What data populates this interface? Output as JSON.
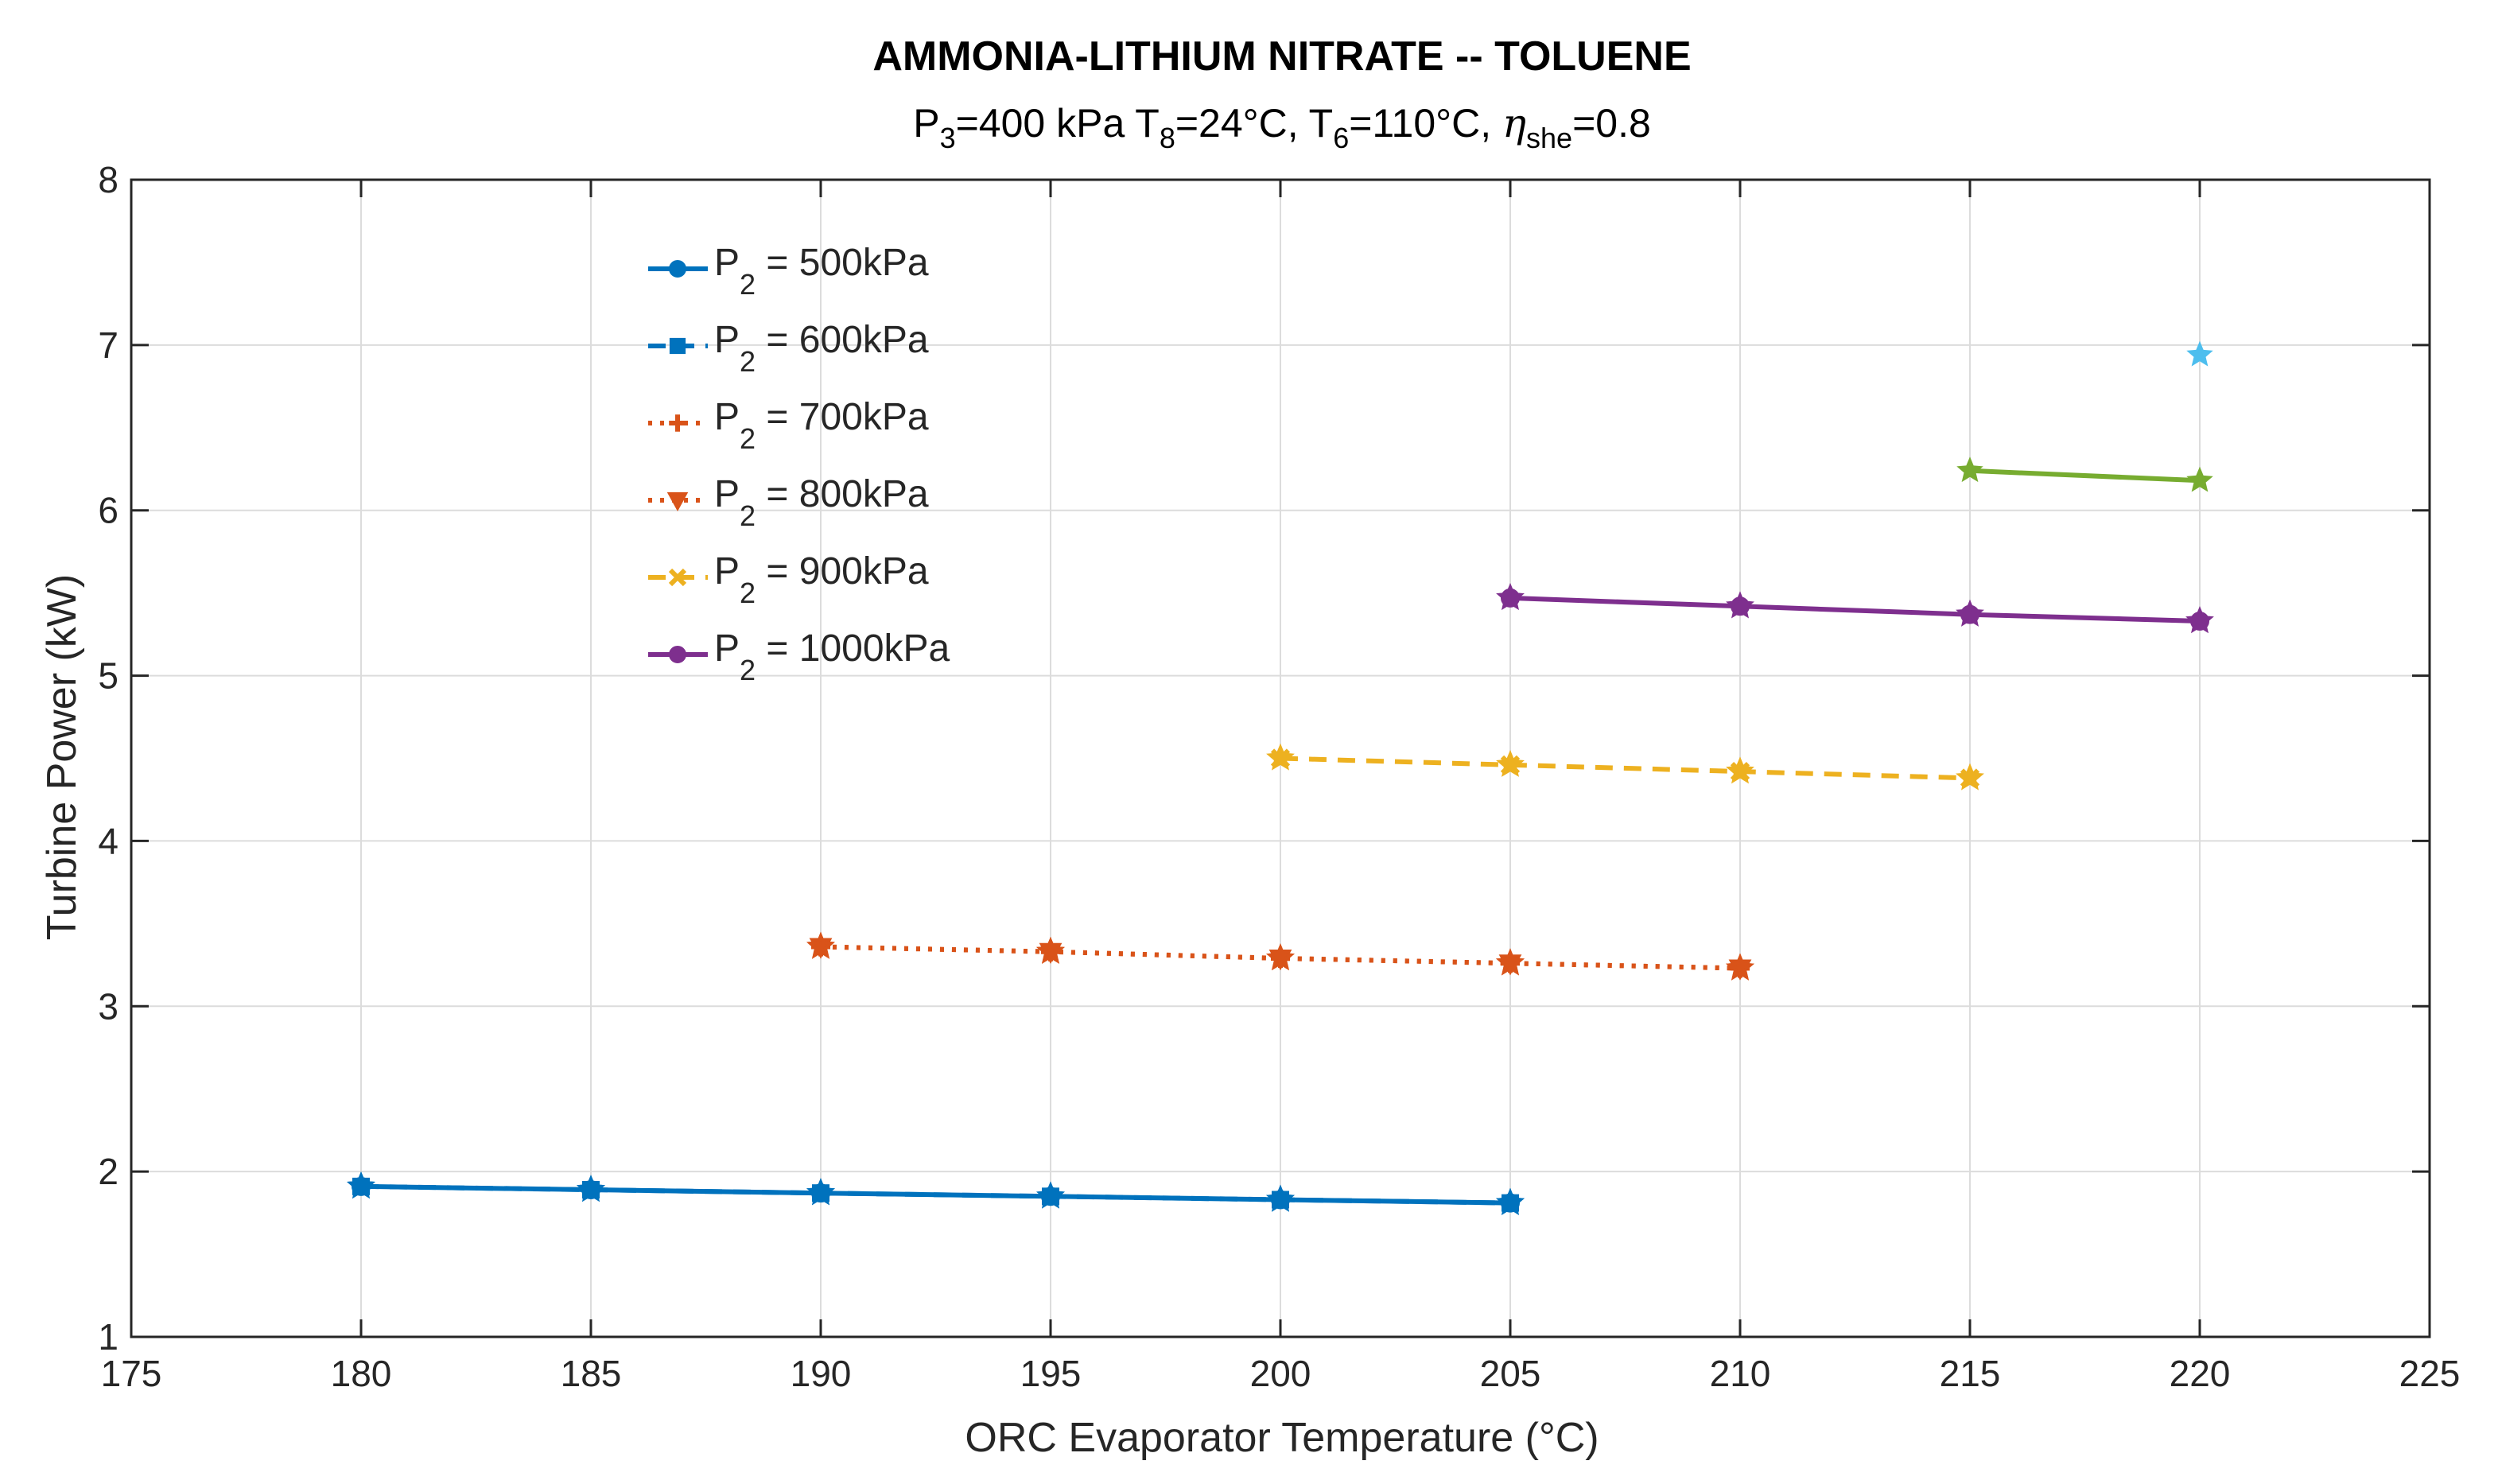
{
  "chart_data": {
    "type": "line",
    "title": "AMMONIA-LITHIUM NITRATE -- TOLUENE",
    "subtitle": {
      "p3_label": "P",
      "p3_sub": "3",
      "p3_value": "=400 kPa",
      "t8_label": "T",
      "t8_sub": "8",
      "t8_value": "=24°C,",
      "t6_label": "T",
      "t6_sub": "6",
      "t6_value": "=110°C,",
      "eta_label": "η",
      "eta_sub": "she",
      "eta_value": "=0.8"
    },
    "xlabel": "ORC Evaporator Temperature (°C)",
    "ylabel": "Turbine Power (kW)",
    "xlim": [
      175,
      225
    ],
    "ylim": [
      1,
      8
    ],
    "xticks": [
      175,
      180,
      185,
      190,
      195,
      200,
      205,
      210,
      215,
      220,
      225
    ],
    "yticks": [
      1,
      2,
      3,
      4,
      5,
      6,
      7,
      8
    ],
    "grid": true,
    "legend_position": "top-left",
    "series": [
      {
        "name_prefix": "P",
        "name_sub": "2",
        "name_suffix": " = 500kPa",
        "color": "#0072BD",
        "line": "solid",
        "marker": "circle",
        "x": [
          180,
          185,
          190,
          195,
          200,
          205
        ],
        "y": [
          1.91,
          1.89,
          1.87,
          1.85,
          1.83,
          1.81
        ]
      },
      {
        "name_prefix": "P",
        "name_sub": "2",
        "name_suffix": " = 600kPa",
        "color": "#0072BD",
        "line": "dashed",
        "marker": "square",
        "x": [
          180,
          185,
          190,
          195,
          200,
          205
        ],
        "y": [
          1.91,
          1.89,
          1.87,
          1.85,
          1.83,
          1.81
        ]
      },
      {
        "name_prefix": "P",
        "name_sub": "2",
        "name_suffix": " = 700kPa",
        "color": "#D95319",
        "line": "dotted",
        "marker": "plus",
        "x": [
          190,
          195,
          200,
          205,
          210
        ],
        "y": [
          3.36,
          3.33,
          3.29,
          3.26,
          3.23
        ]
      },
      {
        "name_prefix": "P",
        "name_sub": "2",
        "name_suffix": " = 800kPa",
        "color": "#D95319",
        "line": "dotted",
        "marker": "triangle-down",
        "x": [
          190,
          195,
          200,
          205,
          210
        ],
        "y": [
          3.36,
          3.33,
          3.29,
          3.26,
          3.23
        ]
      },
      {
        "name_prefix": "P",
        "name_sub": "2",
        "name_suffix": " = 900kPa",
        "color": "#EDB120",
        "line": "dashed",
        "marker": "x",
        "x": [
          200,
          205,
          210,
          215
        ],
        "y": [
          4.5,
          4.46,
          4.42,
          4.38
        ]
      },
      {
        "name_prefix": "P",
        "name_sub": "2",
        "name_suffix": " = 1000kPa",
        "color": "#7E2F8E",
        "line": "solid",
        "marker": "circle",
        "x": [
          205,
          210,
          215,
          220
        ],
        "y": [
          5.47,
          5.42,
          5.37,
          5.33
        ]
      },
      {
        "color": "#77AC30",
        "line": "solid",
        "marker": "star",
        "x": [
          215,
          220
        ],
        "y": [
          6.24,
          6.18
        ]
      },
      {
        "color": "#4DBEEE",
        "line": "solid",
        "marker": "star",
        "x": [
          220
        ],
        "y": [
          6.94
        ]
      }
    ]
  }
}
